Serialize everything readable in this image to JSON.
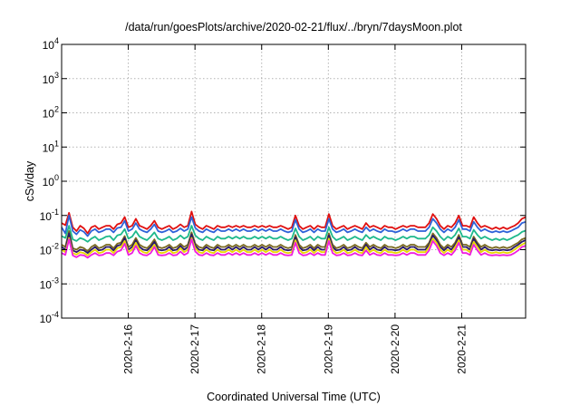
{
  "chart_data": {
    "type": "line",
    "title": "/data/run/goesPlots/archive/2020-02-21/flux/../bryn/7daysMoon.plot",
    "xlabel": "Coordinated Universal Time (UTC)",
    "ylabel": "cSv/day",
    "yscale": "log",
    "ylim": [
      0.0001,
      10000
    ],
    "y_ticks": [
      {
        "base": "10",
        "exp": "4"
      },
      {
        "base": "10",
        "exp": "3"
      },
      {
        "base": "10",
        "exp": "2"
      },
      {
        "base": "10",
        "exp": "1"
      },
      {
        "base": "10",
        "exp": "0"
      },
      {
        "base": "10",
        "exp": "-1"
      },
      {
        "base": "10",
        "exp": "-2"
      },
      {
        "base": "10",
        "exp": "-3"
      },
      {
        "base": "10",
        "exp": "-4"
      }
    ],
    "x_ticks": [
      "2020-2-16",
      "2020-2-17",
      "2020-2-18",
      "2020-2-19",
      "2020-2-20",
      "2020-2-21"
    ],
    "xlim": [
      "2020-02-15 00:00",
      "2020-02-21 23:00"
    ],
    "grid": true,
    "series": [
      {
        "color": "#e01010",
        "values": [
          0.06,
          0.052,
          0.12,
          0.045,
          0.035,
          0.05,
          0.042,
          0.03,
          0.045,
          0.05,
          0.04,
          0.045,
          0.05,
          0.05,
          0.04,
          0.055,
          0.06,
          0.09,
          0.045,
          0.05,
          0.08,
          0.05,
          0.045,
          0.04,
          0.05,
          0.07,
          0.045,
          0.04,
          0.045,
          0.05,
          0.04,
          0.045,
          0.055,
          0.045,
          0.05,
          0.13,
          0.055,
          0.045,
          0.04,
          0.05,
          0.045,
          0.04,
          0.05,
          0.045,
          0.045,
          0.05,
          0.045,
          0.05,
          0.045,
          0.05,
          0.045,
          0.045,
          0.05,
          0.045,
          0.05,
          0.045,
          0.05,
          0.045,
          0.045,
          0.05,
          0.045,
          0.04,
          0.045,
          0.1,
          0.05,
          0.04,
          0.045,
          0.05,
          0.04,
          0.05,
          0.045,
          0.045,
          0.11,
          0.05,
          0.04,
          0.045,
          0.05,
          0.04,
          0.045,
          0.05,
          0.045,
          0.04,
          0.06,
          0.045,
          0.05,
          0.045,
          0.04,
          0.05,
          0.045,
          0.045,
          0.04,
          0.045,
          0.05,
          0.045,
          0.05,
          0.05,
          0.045,
          0.045,
          0.045,
          0.06,
          0.11,
          0.08,
          0.05,
          0.04,
          0.05,
          0.045,
          0.06,
          0.1,
          0.05,
          0.05,
          0.045,
          0.09,
          0.06,
          0.045,
          0.05,
          0.045,
          0.04,
          0.045,
          0.04,
          0.045,
          0.04,
          0.045,
          0.05,
          0.06,
          0.08,
          0.09
        ]
      },
      {
        "color": "#2f62d8",
        "values": [
          0.045,
          0.03,
          0.1,
          0.035,
          0.028,
          0.038,
          0.033,
          0.025,
          0.035,
          0.04,
          0.032,
          0.035,
          0.04,
          0.04,
          0.032,
          0.043,
          0.045,
          0.07,
          0.035,
          0.04,
          0.06,
          0.04,
          0.035,
          0.032,
          0.04,
          0.055,
          0.035,
          0.032,
          0.035,
          0.04,
          0.032,
          0.035,
          0.042,
          0.035,
          0.04,
          0.09,
          0.043,
          0.035,
          0.032,
          0.04,
          0.035,
          0.032,
          0.04,
          0.035,
          0.035,
          0.04,
          0.035,
          0.04,
          0.035,
          0.04,
          0.035,
          0.035,
          0.04,
          0.035,
          0.04,
          0.035,
          0.04,
          0.035,
          0.035,
          0.04,
          0.035,
          0.032,
          0.035,
          0.075,
          0.04,
          0.032,
          0.035,
          0.04,
          0.032,
          0.04,
          0.035,
          0.035,
          0.08,
          0.04,
          0.032,
          0.035,
          0.04,
          0.032,
          0.035,
          0.04,
          0.035,
          0.032,
          0.045,
          0.035,
          0.04,
          0.035,
          0.032,
          0.04,
          0.035,
          0.035,
          0.032,
          0.035,
          0.04,
          0.035,
          0.04,
          0.04,
          0.035,
          0.035,
          0.035,
          0.045,
          0.08,
          0.06,
          0.04,
          0.032,
          0.04,
          0.035,
          0.045,
          0.075,
          0.04,
          0.04,
          0.035,
          0.065,
          0.045,
          0.035,
          0.04,
          0.035,
          0.032,
          0.035,
          0.032,
          0.035,
          0.032,
          0.035,
          0.04,
          0.045,
          0.06,
          0.065
        ]
      },
      {
        "color": "#1eb98c",
        "values": [
          0.025,
          0.022,
          0.05,
          0.02,
          0.018,
          0.022,
          0.02,
          0.017,
          0.021,
          0.024,
          0.019,
          0.021,
          0.024,
          0.025,
          0.019,
          0.026,
          0.028,
          0.04,
          0.021,
          0.024,
          0.035,
          0.024,
          0.021,
          0.019,
          0.024,
          0.032,
          0.021,
          0.019,
          0.021,
          0.024,
          0.019,
          0.021,
          0.026,
          0.021,
          0.024,
          0.05,
          0.026,
          0.021,
          0.019,
          0.024,
          0.021,
          0.019,
          0.024,
          0.021,
          0.021,
          0.024,
          0.021,
          0.024,
          0.021,
          0.024,
          0.021,
          0.021,
          0.024,
          0.021,
          0.024,
          0.021,
          0.024,
          0.021,
          0.021,
          0.024,
          0.021,
          0.019,
          0.021,
          0.042,
          0.024,
          0.019,
          0.021,
          0.024,
          0.019,
          0.024,
          0.021,
          0.021,
          0.045,
          0.024,
          0.019,
          0.021,
          0.024,
          0.019,
          0.021,
          0.024,
          0.021,
          0.019,
          0.027,
          0.021,
          0.024,
          0.021,
          0.019,
          0.024,
          0.021,
          0.021,
          0.019,
          0.021,
          0.024,
          0.021,
          0.024,
          0.024,
          0.021,
          0.021,
          0.021,
          0.027,
          0.045,
          0.035,
          0.024,
          0.019,
          0.024,
          0.021,
          0.027,
          0.042,
          0.024,
          0.024,
          0.021,
          0.038,
          0.027,
          0.021,
          0.024,
          0.021,
          0.019,
          0.021,
          0.019,
          0.021,
          0.019,
          0.021,
          0.024,
          0.027,
          0.033,
          0.036
        ]
      },
      {
        "color": "#7a6a20",
        "values": [
          0.014,
          0.012,
          0.035,
          0.011,
          0.01,
          0.012,
          0.011,
          0.009,
          0.012,
          0.014,
          0.011,
          0.012,
          0.014,
          0.014,
          0.011,
          0.015,
          0.016,
          0.025,
          0.012,
          0.014,
          0.022,
          0.014,
          0.012,
          0.011,
          0.014,
          0.02,
          0.012,
          0.011,
          0.012,
          0.014,
          0.011,
          0.012,
          0.015,
          0.012,
          0.014,
          0.032,
          0.015,
          0.012,
          0.011,
          0.014,
          0.012,
          0.011,
          0.014,
          0.012,
          0.012,
          0.014,
          0.012,
          0.014,
          0.012,
          0.014,
          0.012,
          0.012,
          0.014,
          0.012,
          0.014,
          0.012,
          0.014,
          0.012,
          0.012,
          0.014,
          0.012,
          0.011,
          0.012,
          0.027,
          0.014,
          0.011,
          0.012,
          0.014,
          0.011,
          0.014,
          0.012,
          0.012,
          0.03,
          0.014,
          0.011,
          0.012,
          0.014,
          0.011,
          0.012,
          0.014,
          0.012,
          0.011,
          0.016,
          0.012,
          0.014,
          0.012,
          0.011,
          0.014,
          0.012,
          0.012,
          0.011,
          0.012,
          0.014,
          0.012,
          0.014,
          0.014,
          0.012,
          0.012,
          0.012,
          0.016,
          0.03,
          0.022,
          0.014,
          0.011,
          0.014,
          0.012,
          0.016,
          0.027,
          0.014,
          0.014,
          0.012,
          0.024,
          0.016,
          0.012,
          0.014,
          0.012,
          0.011,
          0.012,
          0.011,
          0.012,
          0.011,
          0.012,
          0.014,
          0.016,
          0.02,
          0.022
        ]
      },
      {
        "color": "#2a1a6a",
        "values": [
          0.012,
          0.01,
          0.03,
          0.0095,
          0.0085,
          0.01,
          0.0095,
          0.008,
          0.01,
          0.012,
          0.0095,
          0.01,
          0.012,
          0.012,
          0.0095,
          0.013,
          0.014,
          0.022,
          0.01,
          0.012,
          0.019,
          0.012,
          0.01,
          0.0095,
          0.012,
          0.017,
          0.01,
          0.0095,
          0.01,
          0.012,
          0.0095,
          0.01,
          0.013,
          0.01,
          0.012,
          0.028,
          0.013,
          0.01,
          0.0095,
          0.012,
          0.01,
          0.0095,
          0.012,
          0.01,
          0.01,
          0.012,
          0.01,
          0.012,
          0.01,
          0.012,
          0.01,
          0.01,
          0.012,
          0.01,
          0.012,
          0.01,
          0.012,
          0.01,
          0.01,
          0.012,
          0.01,
          0.0095,
          0.01,
          0.023,
          0.012,
          0.0095,
          0.01,
          0.012,
          0.0095,
          0.012,
          0.01,
          0.01,
          0.026,
          0.012,
          0.0095,
          0.01,
          0.012,
          0.0095,
          0.01,
          0.012,
          0.01,
          0.0095,
          0.014,
          0.01,
          0.012,
          0.01,
          0.0095,
          0.012,
          0.01,
          0.01,
          0.0095,
          0.01,
          0.012,
          0.01,
          0.012,
          0.012,
          0.01,
          0.01,
          0.01,
          0.014,
          0.026,
          0.019,
          0.012,
          0.0095,
          0.012,
          0.01,
          0.014,
          0.023,
          0.012,
          0.012,
          0.01,
          0.021,
          0.014,
          0.01,
          0.012,
          0.01,
          0.0095,
          0.01,
          0.0095,
          0.01,
          0.0095,
          0.01,
          0.012,
          0.014,
          0.017,
          0.019
        ]
      },
      {
        "color": "#e8d800",
        "values": [
          0.01,
          0.0085,
          0.022,
          0.008,
          0.0072,
          0.0085,
          0.008,
          0.0068,
          0.0085,
          0.01,
          0.008,
          0.0085,
          0.01,
          0.01,
          0.008,
          0.011,
          0.012,
          0.018,
          0.0085,
          0.01,
          0.016,
          0.01,
          0.0085,
          0.008,
          0.01,
          0.014,
          0.0085,
          0.008,
          0.0085,
          0.01,
          0.008,
          0.0085,
          0.011,
          0.0085,
          0.01,
          0.022,
          0.011,
          0.0085,
          0.008,
          0.01,
          0.0085,
          0.008,
          0.01,
          0.0085,
          0.0085,
          0.01,
          0.0085,
          0.01,
          0.0085,
          0.01,
          0.0085,
          0.0085,
          0.01,
          0.0085,
          0.01,
          0.0085,
          0.01,
          0.0085,
          0.0085,
          0.01,
          0.0085,
          0.008,
          0.0085,
          0.019,
          0.01,
          0.008,
          0.0085,
          0.01,
          0.008,
          0.01,
          0.0085,
          0.0085,
          0.021,
          0.01,
          0.008,
          0.0085,
          0.01,
          0.008,
          0.0085,
          0.01,
          0.0085,
          0.008,
          0.012,
          0.0085,
          0.01,
          0.0085,
          0.008,
          0.01,
          0.0085,
          0.0085,
          0.008,
          0.0085,
          0.01,
          0.0085,
          0.01,
          0.01,
          0.0085,
          0.0085,
          0.0085,
          0.012,
          0.021,
          0.016,
          0.01,
          0.008,
          0.01,
          0.0085,
          0.012,
          0.019,
          0.01,
          0.01,
          0.0085,
          0.017,
          0.012,
          0.0085,
          0.01,
          0.0085,
          0.008,
          0.0085,
          0.008,
          0.0085,
          0.008,
          0.0085,
          0.01,
          0.012,
          0.014,
          0.016
        ]
      },
      {
        "color": "#ee1ce0",
        "values": [
          0.008,
          0.007,
          0.02,
          0.0068,
          0.006,
          0.007,
          0.0068,
          0.0058,
          0.007,
          0.008,
          0.0068,
          0.007,
          0.008,
          0.008,
          0.0068,
          0.0088,
          0.0095,
          0.015,
          0.007,
          0.008,
          0.013,
          0.008,
          0.007,
          0.0068,
          0.008,
          0.012,
          0.007,
          0.0068,
          0.007,
          0.008,
          0.0068,
          0.007,
          0.0088,
          0.007,
          0.008,
          0.02,
          0.0088,
          0.007,
          0.0068,
          0.008,
          0.007,
          0.0068,
          0.008,
          0.007,
          0.007,
          0.008,
          0.007,
          0.008,
          0.007,
          0.008,
          0.007,
          0.007,
          0.008,
          0.007,
          0.008,
          0.007,
          0.008,
          0.007,
          0.007,
          0.008,
          0.007,
          0.0068,
          0.007,
          0.016,
          0.008,
          0.0068,
          0.007,
          0.008,
          0.0068,
          0.008,
          0.007,
          0.007,
          0.018,
          0.008,
          0.0068,
          0.007,
          0.008,
          0.0068,
          0.007,
          0.008,
          0.007,
          0.0068,
          0.0095,
          0.007,
          0.008,
          0.007,
          0.0068,
          0.008,
          0.007,
          0.007,
          0.0068,
          0.007,
          0.008,
          0.007,
          0.008,
          0.008,
          0.007,
          0.007,
          0.007,
          0.0095,
          0.018,
          0.013,
          0.008,
          0.0068,
          0.008,
          0.007,
          0.0095,
          0.016,
          0.008,
          0.008,
          0.007,
          0.014,
          0.0095,
          0.007,
          0.008,
          0.007,
          0.0068,
          0.007,
          0.0068,
          0.007,
          0.0068,
          0.007,
          0.008,
          0.0095,
          0.012,
          0.013
        ]
      }
    ]
  }
}
